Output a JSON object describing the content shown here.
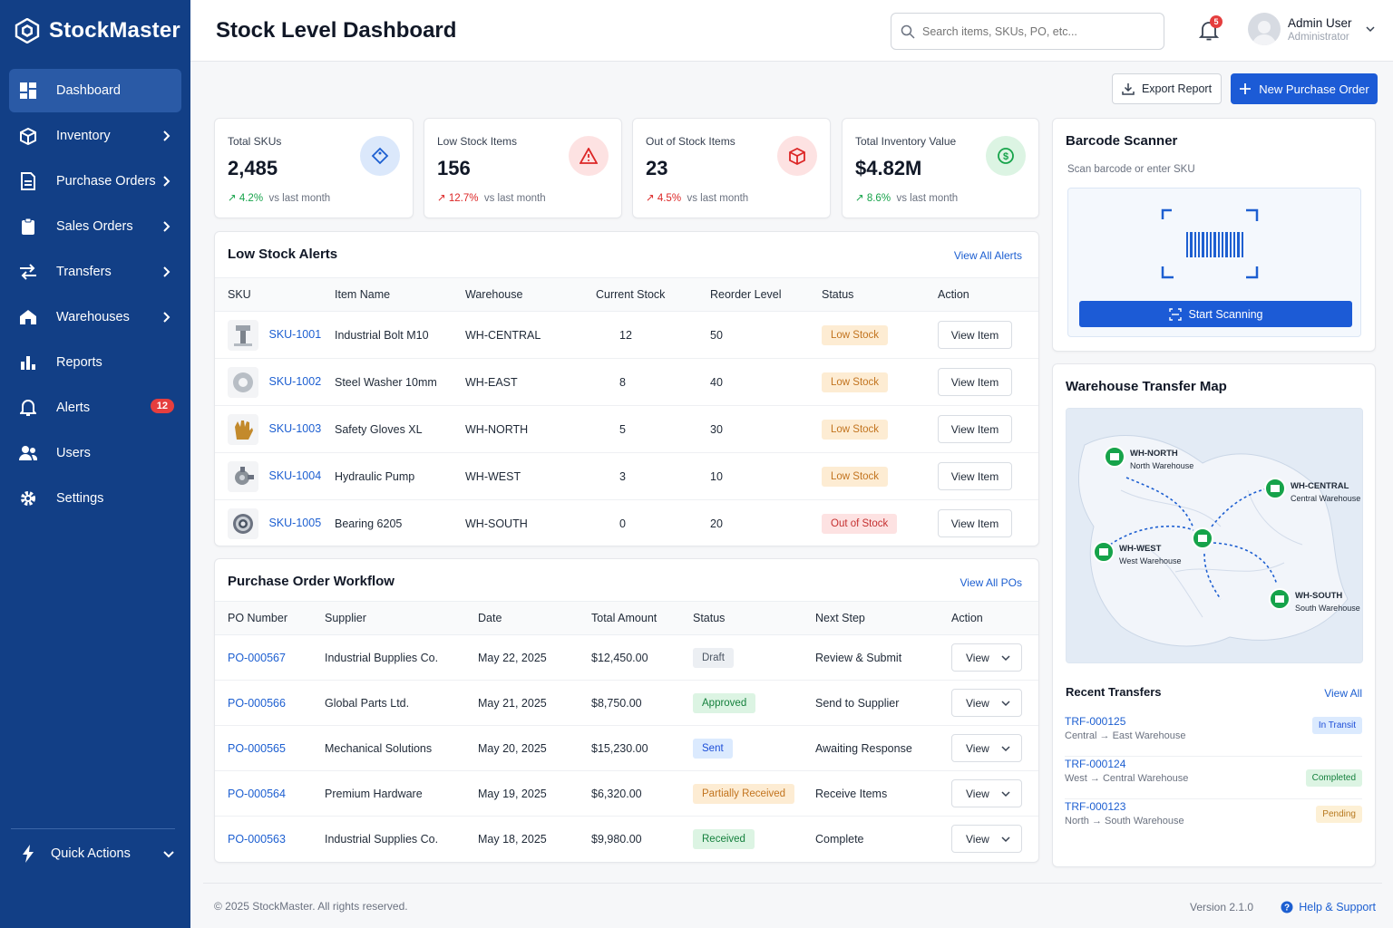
{
  "app": {
    "name": "StockMaster"
  },
  "sidebar": {
    "items": [
      {
        "label": "Dashboard"
      },
      {
        "label": "Inventory"
      },
      {
        "label": "Purchase Orders"
      },
      {
        "label": "Sales Orders"
      },
      {
        "label": "Transfers"
      },
      {
        "label": "Warehouses"
      },
      {
        "label": "Reports"
      },
      {
        "label": "Alerts",
        "badge": "12"
      },
      {
        "label": "Users"
      },
      {
        "label": "Settings"
      }
    ],
    "quick_actions": "Quick Actions"
  },
  "header": {
    "title": "Stock Level Dashboard",
    "search_placeholder": "Search items, SKUs, PO, etc...",
    "notifications_count": "5",
    "user_name": "Admin User",
    "user_role": "Administrator"
  },
  "actions": {
    "export": "Export Report",
    "new_po": "New Purchase Order"
  },
  "stats": [
    {
      "label": "Total SKUs",
      "value": "2,485",
      "change": "4.2%",
      "suffix": "vs last month"
    },
    {
      "label": "Low Stock Items",
      "value": "156",
      "change": "12.7%",
      "suffix": "vs last month"
    },
    {
      "label": "Out of Stock Items",
      "value": "23",
      "change": "4.5%",
      "suffix": "vs last month"
    },
    {
      "label": "Total Inventory Value",
      "value": "$4.82M",
      "change": "8.6%",
      "suffix": "vs last month"
    }
  ],
  "low_stock": {
    "title": "Low Stock Alerts",
    "link": "View All Alerts",
    "columns": [
      "SKU",
      "Item Name",
      "Warehouse",
      "Current Stock",
      "Reorder Level",
      "Status",
      "Action"
    ],
    "rows": [
      {
        "sku": "SKU-1001",
        "name": "Industrial Bolt M10",
        "warehouse": "WH-CENTRAL",
        "current": "12",
        "reorder": "50",
        "status": "Low Stock",
        "action": "View Item"
      },
      {
        "sku": "SKU-1002",
        "name": "Steel Washer 10mm",
        "warehouse": "WH-EAST",
        "current": "8",
        "reorder": "40",
        "status": "Low Stock",
        "action": "View Item"
      },
      {
        "sku": "SKU-1003",
        "name": "Safety Gloves XL",
        "warehouse": "WH-NORTH",
        "current": "5",
        "reorder": "30",
        "status": "Low Stock",
        "action": "View Item"
      },
      {
        "sku": "SKU-1004",
        "name": "Hydraulic Pump",
        "warehouse": "WH-WEST",
        "current": "3",
        "reorder": "10",
        "status": "Low Stock",
        "action": "View Item"
      },
      {
        "sku": "SKU-1005",
        "name": "Bearing 6205",
        "warehouse": "WH-SOUTH",
        "current": "0",
        "reorder": "20",
        "status": "Out of Stock",
        "action": "View Item"
      }
    ]
  },
  "po": {
    "title": "Purchase Order Workflow",
    "link": "View All POs",
    "columns": [
      "PO Number",
      "Supplier",
      "Date",
      "Total Amount",
      "Status",
      "Next Step",
      "Action"
    ],
    "rows": [
      {
        "number": "PO-000567",
        "supplier": "Industrial Bupplies Co.",
        "date": "May 22, 2025",
        "amount": "$12,450.00",
        "status": "Draft",
        "next": "Review & Submit",
        "action": "View"
      },
      {
        "number": "PO-000566",
        "supplier": "Global Parts Ltd.",
        "date": "May 21, 2025",
        "amount": "$8,750.00",
        "status": "Approved",
        "next": "Send to Supplier",
        "action": "View"
      },
      {
        "number": "PO-000565",
        "supplier": "Mechanical Solutions",
        "date": "May 20, 2025",
        "amount": "$15,230.00",
        "status": "Sent",
        "next": "Awaiting Response",
        "action": "View"
      },
      {
        "number": "PO-000564",
        "supplier": "Premium Hardware",
        "date": "May 19, 2025",
        "amount": "$6,320.00",
        "status": "Partially Received",
        "next": "Receive Items",
        "action": "View"
      },
      {
        "number": "PO-000563",
        "supplier": "Industrial Supplies Co.",
        "date": "May 18, 2025",
        "amount": "$9,980.00",
        "status": "Received",
        "next": "Complete",
        "action": "View"
      }
    ]
  },
  "scanner": {
    "title": "Barcode Scanner",
    "subtitle": "Scan barcode or enter SKU",
    "button": "Start Scanning"
  },
  "map": {
    "title": "Warehouse Transfer Map",
    "warehouses": [
      {
        "code": "WH-NORTH",
        "name": "North Warehouse"
      },
      {
        "code": "WH-CENTRAL",
        "name": "Central Warehouse"
      },
      {
        "code": "WH-WEST",
        "name": "West Warehouse"
      },
      {
        "code": "WH-SOUTH",
        "name": "South Warehouse"
      }
    ]
  },
  "transfers": {
    "title": "Recent Transfers",
    "link": "View All",
    "rows": [
      {
        "id": "TRF-000125",
        "route": "Central → East Warehouse",
        "status": "In Transit"
      },
      {
        "id": "TRF-000124",
        "route": "West → Central Warehouse",
        "status": "Completed"
      },
      {
        "id": "TRF-000123",
        "route": "North → South Warehouse",
        "status": "Pending"
      }
    ]
  },
  "footer": {
    "copyright": "© 2025 StockMaster. All rights reserved.",
    "version": "Version 2.1.0",
    "help": "Help & Support"
  },
  "colors": {
    "sidebar": "#123f86",
    "primary": "#1c5bd6",
    "link": "#1d5fd1"
  }
}
